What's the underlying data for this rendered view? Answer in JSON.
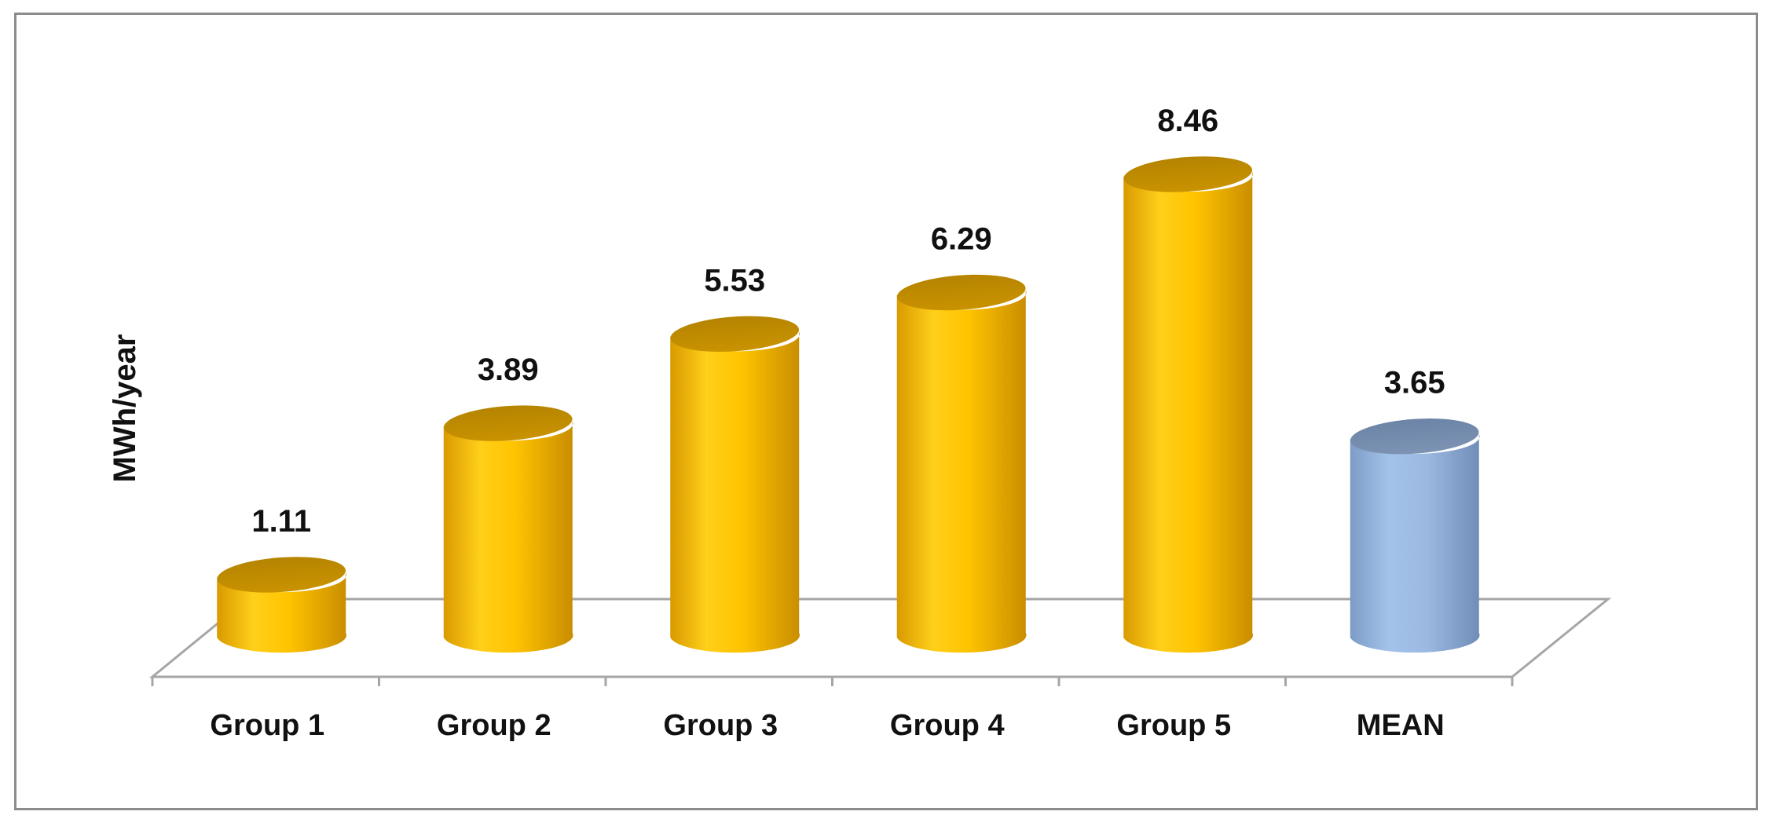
{
  "chart_data": {
    "type": "bar",
    "style": "3d-cylinder",
    "categories": [
      "Group 1",
      "Group 2",
      "Group 3",
      "Group 4",
      "Group 5",
      "MEAN"
    ],
    "values": [
      1.11,
      3.89,
      5.53,
      6.29,
      8.46,
      3.65
    ],
    "value_labels": [
      "1.11",
      "3.89",
      "5.53",
      "6.29",
      "8.46",
      "3.65"
    ],
    "title": "",
    "xlabel": "",
    "ylabel": "MWh/year",
    "ylim": [
      0,
      9
    ],
    "grid": false,
    "legend": "none",
    "colors": {
      "groups": "#ffc200",
      "mean": "#8fb0d8",
      "axis": "#a6a6a6",
      "frame": "#8c8c8c"
    }
  }
}
